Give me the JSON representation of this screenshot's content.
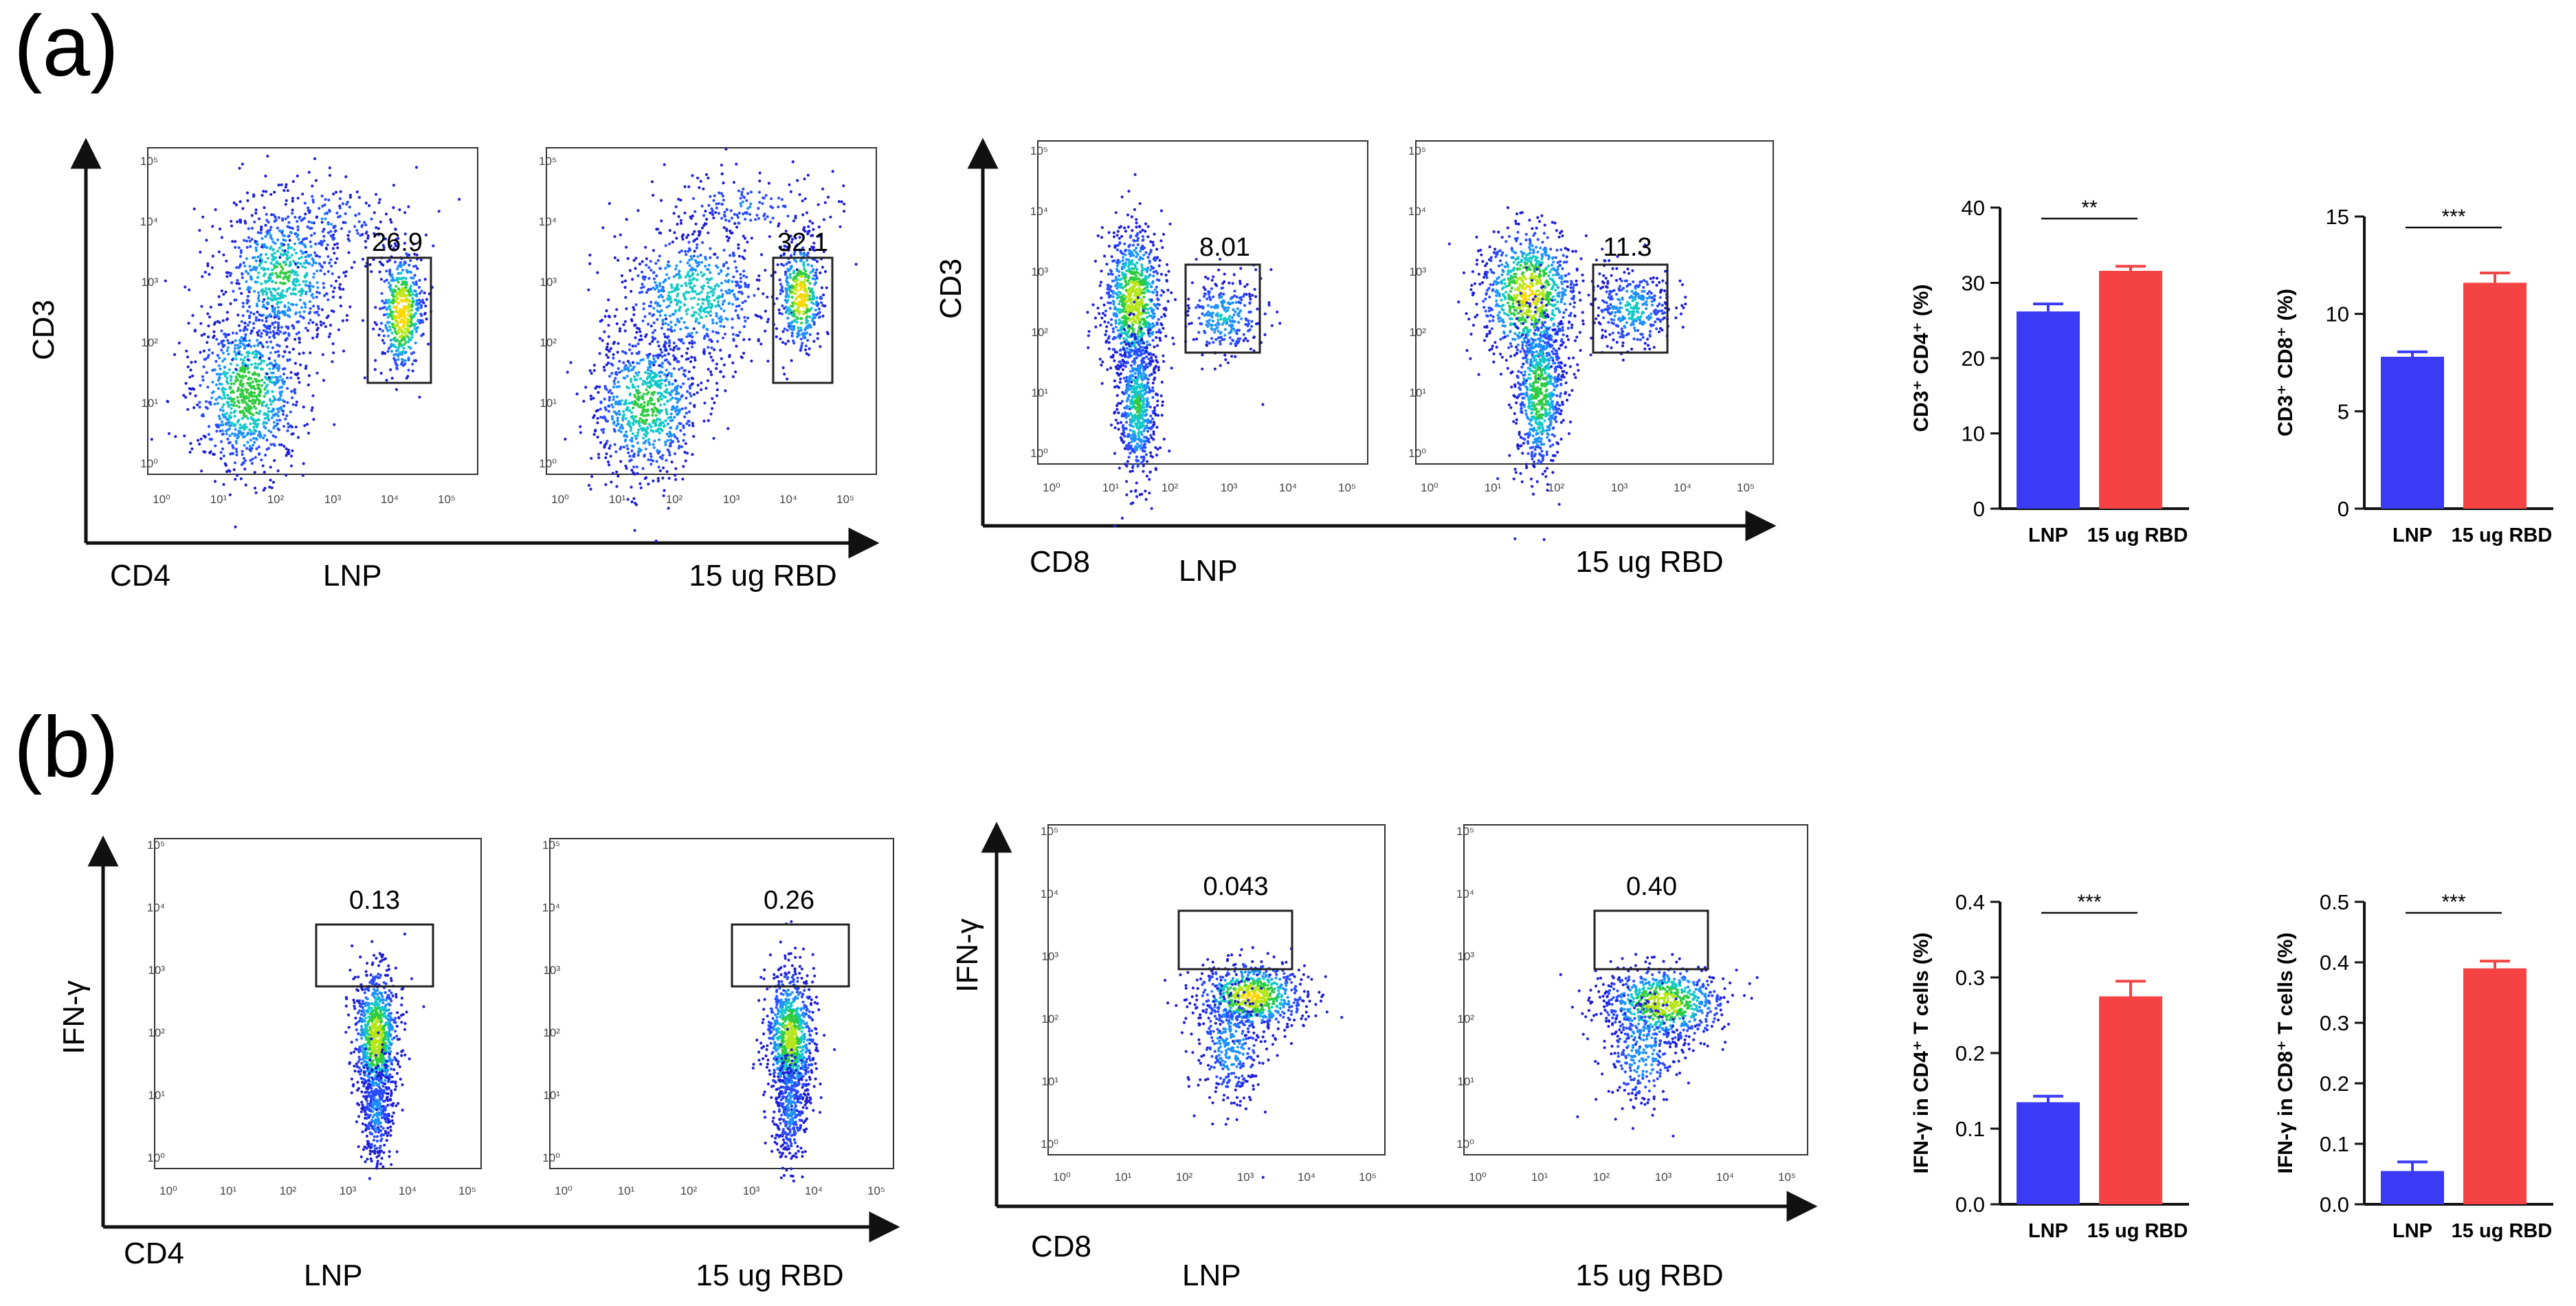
{
  "panels": {
    "a": {
      "label": "(a)",
      "cd4_axes": {
        "y_label": "CD3",
        "x_label": "CD4"
      },
      "cd8_axes": {
        "y_label": "CD3",
        "x_label": "CD8"
      },
      "flow_plots": [
        {
          "group": "LNP",
          "gate_value": "26.9"
        },
        {
          "group": "15 ug RBD",
          "gate_value": "32.1"
        },
        {
          "group": "LNP",
          "gate_value": "8.01"
        },
        {
          "group": "15 ug RBD",
          "gate_value": "11.3"
        }
      ]
    },
    "b": {
      "label": "(b)",
      "cd4_axes": {
        "y_label": "IFN-γ",
        "x_label": "CD4"
      },
      "cd8_axes": {
        "y_label": "IFN-γ",
        "x_label": "CD8"
      },
      "flow_plots": [
        {
          "group": "LNP",
          "gate_value": "0.13"
        },
        {
          "group": "15 ug RBD",
          "gate_value": "0.26"
        },
        {
          "group": "LNP",
          "gate_value": "0.043"
        },
        {
          "group": "15 ug RBD",
          "gate_value": "0.40"
        }
      ]
    }
  },
  "axis_ticks": [
    "10⁰",
    "10¹",
    "10²",
    "10³",
    "10⁴",
    "10⁵"
  ],
  "colors": {
    "lnp": "#3b3bf5",
    "rbd": "#f54242",
    "density_low": "#1a1aff",
    "density_high": "#ffd700"
  },
  "chart_data": [
    {
      "type": "bar",
      "categories": [
        "LNP",
        "15 ug RBD"
      ],
      "values": [
        26.2,
        31.6
      ],
      "errors": [
        1.0,
        0.6
      ],
      "ylabel": "CD3⁺ CD4⁺ (%)",
      "ylim": [
        0,
        40
      ],
      "yticks": [
        "0",
        "10",
        "20",
        "30",
        "40"
      ],
      "significance": "**"
    },
    {
      "type": "bar",
      "categories": [
        "LNP",
        "15 ug RBD"
      ],
      "values": [
        7.8,
        11.6
      ],
      "errors": [
        0.25,
        0.5
      ],
      "ylabel": "CD3⁺ CD8⁺ (%)",
      "ylim": [
        0,
        15
      ],
      "yticks": [
        "0",
        "5",
        "10",
        "15"
      ],
      "significance": "***"
    },
    {
      "type": "bar",
      "categories": [
        "LNP",
        "15 ug RBD"
      ],
      "values": [
        0.135,
        0.275
      ],
      "errors": [
        0.008,
        0.02
      ],
      "ylabel": "IFN-γ in CD4⁺ T cells (%)",
      "ylim": [
        0,
        0.4
      ],
      "yticks": [
        "0.0",
        "0.1",
        "0.2",
        "0.3",
        "0.4"
      ],
      "significance": "***"
    },
    {
      "type": "bar",
      "categories": [
        "LNP",
        "15 ug RBD"
      ],
      "values": [
        0.055,
        0.39
      ],
      "errors": [
        0.015,
        0.012
      ],
      "ylabel": "IFN-γ in CD8⁺ T cells (%)",
      "ylim": [
        0,
        0.5
      ],
      "yticks": [
        "0.0",
        "0.1",
        "0.2",
        "0.3",
        "0.4",
        "0.5"
      ],
      "significance": "***"
    }
  ]
}
